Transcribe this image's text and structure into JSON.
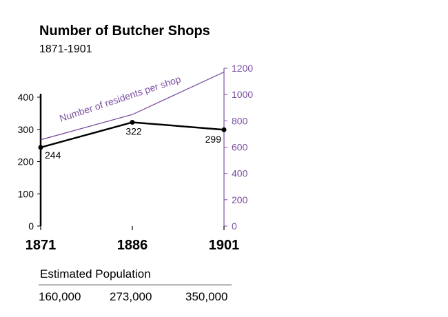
{
  "chart_data": {
    "type": "line",
    "title": "Number of Butcher Shops",
    "subtitle": "1871-1901",
    "x": [
      "1871",
      "1886",
      "1901"
    ],
    "series": [
      {
        "name": "Number of butcher shops",
        "axis": "left",
        "values": [
          244,
          322,
          299
        ],
        "labels": [
          "244",
          "322",
          "299"
        ],
        "color": "#000000"
      },
      {
        "name": "Number of residents per shop",
        "axis": "right",
        "values": [
          656,
          848,
          1171
        ],
        "color": "#7b4fa0"
      }
    ],
    "left_axis": {
      "ylim": [
        0,
        400
      ],
      "ticks": [
        0,
        100,
        200,
        300,
        400
      ],
      "tick_labels": [
        "0",
        "100",
        "200",
        "300",
        "400"
      ]
    },
    "right_axis": {
      "ylim": [
        0,
        1200
      ],
      "ticks": [
        0,
        200,
        400,
        600,
        800,
        1000,
        1200
      ],
      "tick_labels": [
        "0",
        "200",
        "400",
        "600",
        "800",
        "1000",
        "1200"
      ],
      "color": "#7b4fa0"
    },
    "annotation": "Number of residents per shop"
  },
  "population": {
    "heading": "Estimated Population",
    "values": [
      "160,000",
      "273,000",
      "350,000"
    ]
  }
}
